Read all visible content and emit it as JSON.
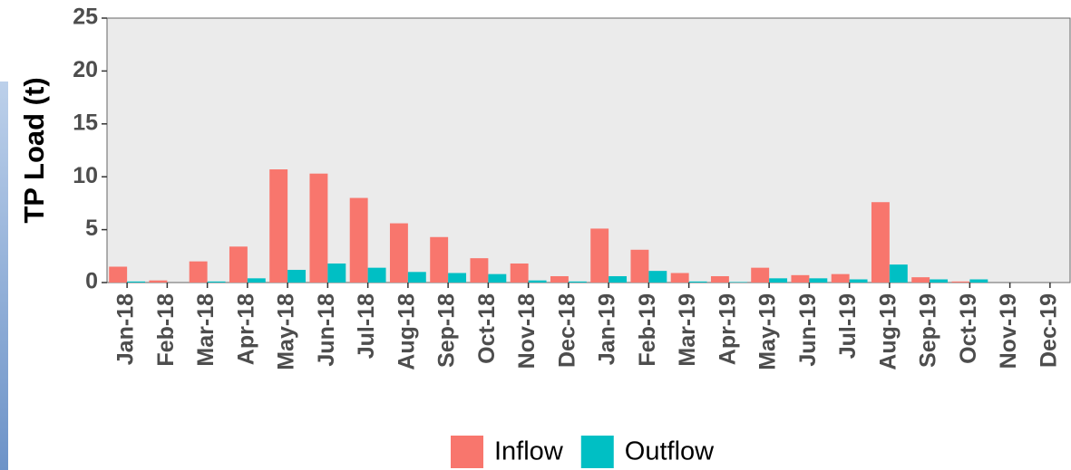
{
  "chart_data": {
    "type": "bar",
    "y_label": "TP Load (t)",
    "categories": [
      "Jan-18",
      "Feb-18",
      "Mar-18",
      "Apr-18",
      "May-18",
      "Jun-18",
      "Jul-18",
      "Aug-18",
      "Sep-18",
      "Oct-18",
      "Nov-18",
      "Dec-18",
      "Jan-19",
      "Feb-19",
      "Mar-19",
      "Apr-19",
      "May-19",
      "Jun-19",
      "Jul-19",
      "Aug-19",
      "Sep-19",
      "Oct-19",
      "Nov-19",
      "Dec-19"
    ],
    "series": [
      {
        "name": "Inflow",
        "color": "#f8766d",
        "values": [
          1.5,
          0.2,
          2.0,
          3.4,
          10.7,
          10.3,
          8.0,
          5.6,
          4.3,
          2.3,
          1.8,
          0.6,
          5.1,
          3.1,
          0.9,
          0.6,
          1.4,
          0.7,
          0.8,
          7.6,
          0.5,
          0.1,
          0,
          0
        ]
      },
      {
        "name": "Outflow",
        "color": "#00bfc4",
        "values": [
          0.1,
          0,
          0.1,
          0.4,
          1.2,
          1.8,
          1.4,
          1.0,
          0.9,
          0.8,
          0.2,
          0.1,
          0.6,
          1.1,
          0.1,
          0.05,
          0.4,
          0.4,
          0.3,
          1.7,
          0.3,
          0.3,
          0,
          0
        ]
      }
    ],
    "ylim": [
      0,
      25
    ],
    "yticks": [
      0,
      5,
      10,
      15,
      20,
      25
    ],
    "grid": false,
    "legend": "bottom"
  }
}
